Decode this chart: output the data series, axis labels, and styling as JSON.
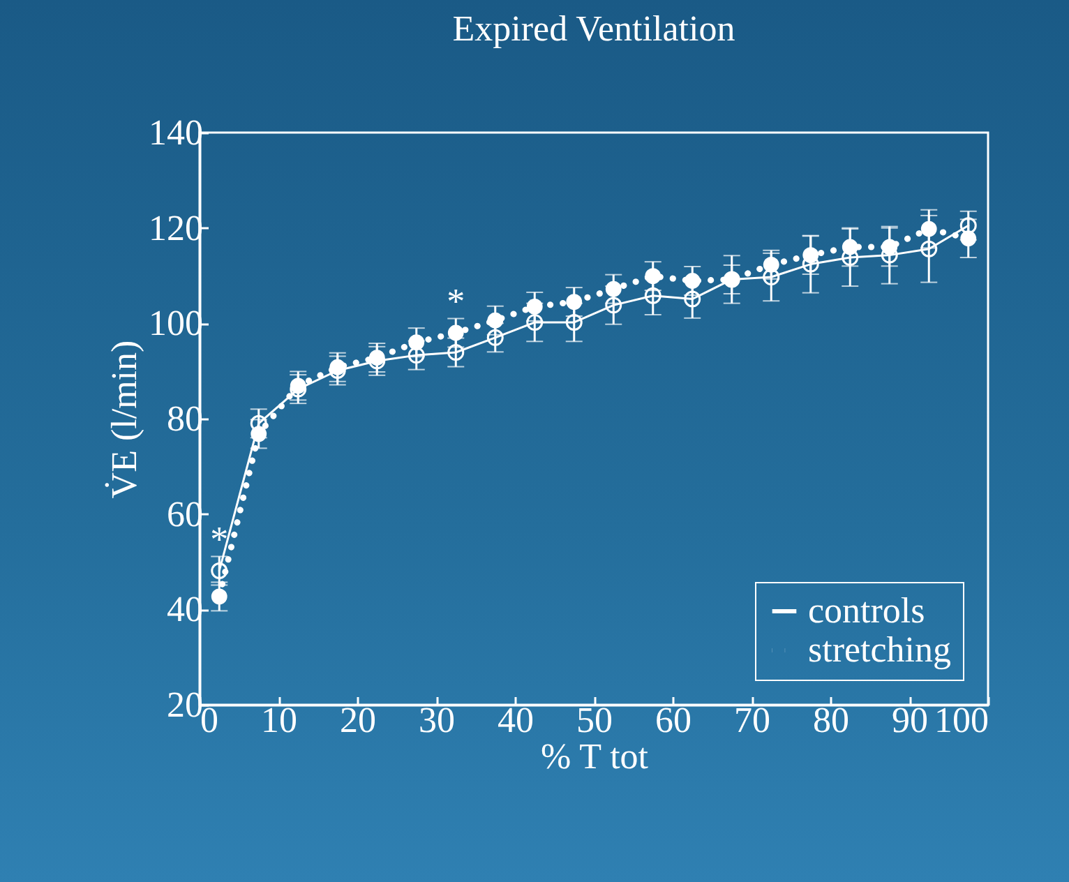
{
  "chart_data": {
    "type": "line",
    "title": "Expired Ventilation",
    "xlabel": "% T tot",
    "ylabel": "V̇E (l/min)",
    "x": [
      2.5,
      7.5,
      12.5,
      17.5,
      22.5,
      27.5,
      32.5,
      37.5,
      42.5,
      47.5,
      52.5,
      57.5,
      62.5,
      67.5,
      72.5,
      77.5,
      82.5,
      87.5,
      92.5,
      97.5
    ],
    "series": [
      {
        "name": "controls",
        "color": "#ffffff",
        "line_style": "solid",
        "values": [
          48.1,
          79.0,
          86.2,
          90.1,
          92.1,
          93.3,
          93.9,
          97.0,
          100.2,
          100.2,
          103.8,
          105.8,
          105.1,
          109.2,
          109.7,
          112.4,
          113.8,
          114.3,
          115.6,
          120.5
        ],
        "errors": [
          3,
          3,
          3,
          3,
          3,
          3,
          3,
          3,
          4,
          4,
          4,
          4,
          4,
          5,
          5,
          6,
          6,
          6,
          7,
          3
        ]
      },
      {
        "name": "stretching",
        "color": "#ffffff",
        "line_style": "dotted",
        "values": [
          42.7,
          76.8,
          86.9,
          90.8,
          92.8,
          96.0,
          98.0,
          100.6,
          103.5,
          104.5,
          107.2,
          109.9,
          108.9,
          109.2,
          112.3,
          114.3,
          116.0,
          116.0,
          119.8,
          117.8
        ],
        "errors": [
          3,
          3,
          3,
          3,
          3,
          3,
          3,
          3,
          3,
          3,
          3,
          3,
          3,
          3,
          3,
          4,
          4,
          4,
          4,
          4
        ]
      }
    ],
    "annotations": [
      {
        "text": "*",
        "x": 2.5,
        "y": 48.1
      },
      {
        "text": "*",
        "x": 32.5,
        "y": 98.0
      }
    ],
    "xlim": [
      0,
      100
    ],
    "xticks": [
      0,
      10,
      20,
      30,
      40,
      50,
      60,
      70,
      80,
      90,
      100
    ],
    "ylim": [
      20,
      140
    ],
    "yticks": [
      20,
      40,
      60,
      80,
      100,
      120,
      140
    ],
    "grid": false,
    "legend": "bottom right",
    "marker": "circle"
  }
}
